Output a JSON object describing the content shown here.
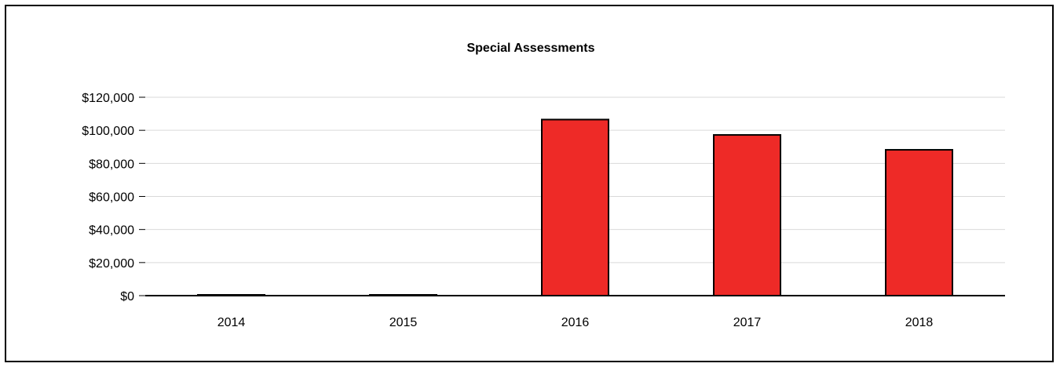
{
  "chart_data": {
    "type": "bar",
    "title": "Special Assessments",
    "xlabel": "",
    "ylabel": "",
    "categories": [
      "2014",
      "2015",
      "2016",
      "2017",
      "2018"
    ],
    "values": [
      0,
      0,
      106500,
      97200,
      88200
    ],
    "ylim": [
      0,
      120000
    ],
    "yticks": [
      "$0",
      "$20,000",
      "$40,000",
      "$60,000",
      "$80,000",
      "$100,000",
      "$120,000"
    ],
    "ytick_values": [
      0,
      20000,
      40000,
      60000,
      80000,
      100000,
      120000
    ],
    "grid": true,
    "legend": "none",
    "bar_color": "#ee2a27",
    "bar_edge_color": "#000000",
    "grid_color": "#d9d9d9"
  }
}
